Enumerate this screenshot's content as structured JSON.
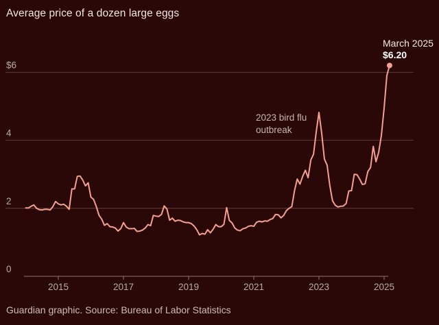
{
  "header": {
    "title": "Average price of a dozen large eggs"
  },
  "footer": {
    "source": "Guardian graphic. Source: Bureau of Labor Statistics"
  },
  "colors": {
    "background": "#2b0808",
    "line": "#f4a093",
    "grid": "#6e4a44",
    "baseline": "#8f7470"
  },
  "chart_data": {
    "type": "line",
    "title": "Average price of a dozen large eggs",
    "xlabel": "",
    "ylabel": "",
    "ylim": [
      0,
      6.4
    ],
    "xlim": [
      "2014-01",
      "2025-03"
    ],
    "y_ticks": [
      {
        "value": 0,
        "label": "0"
      },
      {
        "value": 2,
        "label": "2"
      },
      {
        "value": 4,
        "label": "4"
      },
      {
        "value": 6,
        "label": "$6"
      }
    ],
    "x_ticks": [
      {
        "value": "2015-01",
        "label": "2015"
      },
      {
        "value": "2017-01",
        "label": "2017"
      },
      {
        "value": "2019-01",
        "label": "2019"
      },
      {
        "value": "2021-01",
        "label": "2021"
      },
      {
        "value": "2023-01",
        "label": "2023"
      },
      {
        "value": "2025-01",
        "label": "2025"
      }
    ],
    "grid": "horizontal",
    "annotations": [
      {
        "x": "2023-01",
        "y": 4.82,
        "lines": [
          "2023 bird flu",
          "outbreak"
        ]
      }
    ],
    "callout": {
      "x": "2025-03",
      "y": 6.2,
      "date_label": "March 2025",
      "value_label": "$6.20"
    },
    "series": [
      {
        "values": [
          [
            "2014-01",
            2.01
          ],
          [
            "2014-02",
            2.01
          ],
          [
            "2014-03",
            2.06
          ],
          [
            "2014-04",
            2.1
          ],
          [
            "2014-05",
            2.0
          ],
          [
            "2014-06",
            1.96
          ],
          [
            "2014-07",
            1.95
          ],
          [
            "2014-08",
            1.97
          ],
          [
            "2014-09",
            1.97
          ],
          [
            "2014-10",
            1.95
          ],
          [
            "2014-11",
            2.05
          ],
          [
            "2014-12",
            2.2
          ],
          [
            "2015-01",
            2.13
          ],
          [
            "2015-02",
            2.1
          ],
          [
            "2015-03",
            2.12
          ],
          [
            "2015-04",
            2.06
          ],
          [
            "2015-05",
            1.97
          ],
          [
            "2015-06",
            2.57
          ],
          [
            "2015-07",
            2.57
          ],
          [
            "2015-08",
            2.94
          ],
          [
            "2015-09",
            2.95
          ],
          [
            "2015-10",
            2.83
          ],
          [
            "2015-11",
            2.66
          ],
          [
            "2015-12",
            2.75
          ],
          [
            "2016-01",
            2.33
          ],
          [
            "2016-02",
            2.26
          ],
          [
            "2016-03",
            2.05
          ],
          [
            "2016-04",
            1.79
          ],
          [
            "2016-05",
            1.68
          ],
          [
            "2016-06",
            1.5
          ],
          [
            "2016-07",
            1.55
          ],
          [
            "2016-08",
            1.46
          ],
          [
            "2016-09",
            1.45
          ],
          [
            "2016-10",
            1.42
          ],
          [
            "2016-11",
            1.33
          ],
          [
            "2016-12",
            1.4
          ],
          [
            "2017-01",
            1.58
          ],
          [
            "2017-02",
            1.45
          ],
          [
            "2017-03",
            1.4
          ],
          [
            "2017-04",
            1.4
          ],
          [
            "2017-05",
            1.41
          ],
          [
            "2017-06",
            1.32
          ],
          [
            "2017-07",
            1.33
          ],
          [
            "2017-08",
            1.36
          ],
          [
            "2017-09",
            1.42
          ],
          [
            "2017-10",
            1.52
          ],
          [
            "2017-11",
            1.49
          ],
          [
            "2017-12",
            1.79
          ],
          [
            "2018-01",
            1.77
          ],
          [
            "2018-02",
            1.76
          ],
          [
            "2018-03",
            1.82
          ],
          [
            "2018-04",
            2.07
          ],
          [
            "2018-05",
            1.98
          ],
          [
            "2018-06",
            1.65
          ],
          [
            "2018-07",
            1.71
          ],
          [
            "2018-08",
            1.62
          ],
          [
            "2018-09",
            1.65
          ],
          [
            "2018-10",
            1.64
          ],
          [
            "2018-11",
            1.6
          ],
          [
            "2018-12",
            1.58
          ],
          [
            "2019-01",
            1.58
          ],
          [
            "2019-02",
            1.55
          ],
          [
            "2019-03",
            1.48
          ],
          [
            "2019-04",
            1.37
          ],
          [
            "2019-05",
            1.22
          ],
          [
            "2019-06",
            1.26
          ],
          [
            "2019-07",
            1.24
          ],
          [
            "2019-08",
            1.37
          ],
          [
            "2019-09",
            1.28
          ],
          [
            "2019-10",
            1.38
          ],
          [
            "2019-11",
            1.52
          ],
          [
            "2019-12",
            1.46
          ],
          [
            "2020-01",
            1.46
          ],
          [
            "2020-02",
            1.53
          ],
          [
            "2020-03",
            2.02
          ],
          [
            "2020-04",
            1.64
          ],
          [
            "2020-05",
            1.57
          ],
          [
            "2020-06",
            1.42
          ],
          [
            "2020-07",
            1.36
          ],
          [
            "2020-08",
            1.34
          ],
          [
            "2020-09",
            1.4
          ],
          [
            "2020-10",
            1.42
          ],
          [
            "2020-11",
            1.47
          ],
          [
            "2020-12",
            1.49
          ],
          [
            "2021-01",
            1.47
          ],
          [
            "2021-02",
            1.59
          ],
          [
            "2021-03",
            1.62
          ],
          [
            "2021-04",
            1.6
          ],
          [
            "2021-05",
            1.63
          ],
          [
            "2021-06",
            1.62
          ],
          [
            "2021-07",
            1.67
          ],
          [
            "2021-08",
            1.7
          ],
          [
            "2021-09",
            1.82
          ],
          [
            "2021-10",
            1.81
          ],
          [
            "2021-11",
            1.72
          ],
          [
            "2021-12",
            1.79
          ],
          [
            "2022-01",
            1.93
          ],
          [
            "2022-02",
            2.0
          ],
          [
            "2022-03",
            2.05
          ],
          [
            "2022-04",
            2.52
          ],
          [
            "2022-05",
            2.86
          ],
          [
            "2022-06",
            2.71
          ],
          [
            "2022-07",
            2.94
          ],
          [
            "2022-08",
            3.12
          ],
          [
            "2022-09",
            2.9
          ],
          [
            "2022-10",
            3.42
          ],
          [
            "2022-11",
            3.59
          ],
          [
            "2022-12",
            4.25
          ],
          [
            "2023-01",
            4.82
          ],
          [
            "2023-02",
            4.21
          ],
          [
            "2023-03",
            3.45
          ],
          [
            "2023-04",
            3.27
          ],
          [
            "2023-05",
            2.67
          ],
          [
            "2023-06",
            2.22
          ],
          [
            "2023-07",
            2.09
          ],
          [
            "2023-08",
            2.04
          ],
          [
            "2023-09",
            2.06
          ],
          [
            "2023-10",
            2.07
          ],
          [
            "2023-11",
            2.14
          ],
          [
            "2023-12",
            2.51
          ],
          [
            "2024-01",
            2.52
          ],
          [
            "2024-02",
            3.0
          ],
          [
            "2024-03",
            2.99
          ],
          [
            "2024-04",
            2.86
          ],
          [
            "2024-05",
            2.7
          ],
          [
            "2024-06",
            2.72
          ],
          [
            "2024-07",
            3.08
          ],
          [
            "2024-08",
            3.2
          ],
          [
            "2024-09",
            3.82
          ],
          [
            "2024-10",
            3.37
          ],
          [
            "2024-11",
            3.65
          ],
          [
            "2024-12",
            4.15
          ],
          [
            "2025-01",
            4.95
          ],
          [
            "2025-02",
            5.9
          ],
          [
            "2025-03",
            6.2
          ]
        ]
      }
    ]
  }
}
